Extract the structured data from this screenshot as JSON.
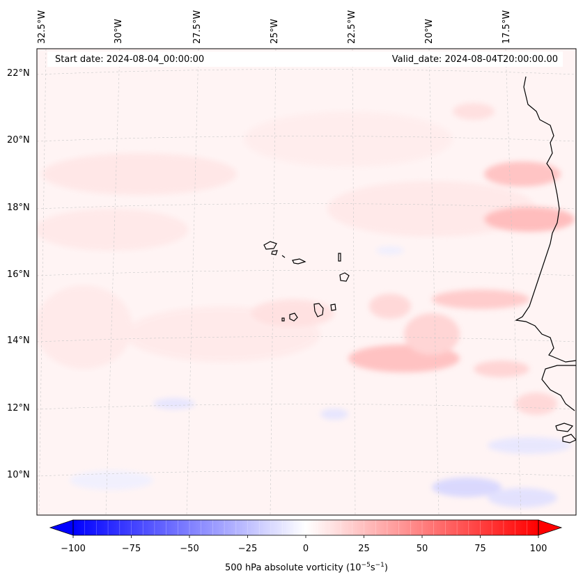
{
  "header": {
    "start_date": "Start date: 2024-08-04_00:00:00",
    "valid_date": "Valid_date: 2024-08-04T20:00:00.00"
  },
  "lon_labels": [
    "32.5°W",
    "30°W",
    "27.5°W",
    "25°W",
    "22.5°W",
    "20°W",
    "17.5°W"
  ],
  "lat_labels": [
    "22°N",
    "20°N",
    "18°N",
    "16°N",
    "14°N",
    "12°N",
    "10°N"
  ],
  "colorbar": {
    "ticks": [
      "−100",
      "−75",
      "−50",
      "−25",
      "0",
      "25",
      "50",
      "75",
      "100"
    ],
    "label": "500 hPa absolute vorticity (10",
    "label_exp1": "−5",
    "label_mid": "s",
    "label_exp2": "−1",
    "label_end": ")",
    "min": -100,
    "max": 100,
    "colors": {
      "negative": "#0000ff",
      "zero": "#ffffff",
      "positive": "#ff0000"
    }
  }
}
